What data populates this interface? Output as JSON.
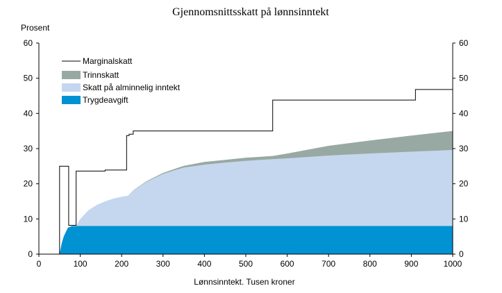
{
  "chart_data": {
    "type": "area",
    "title": "Gjennomsnittsskatt på lønnsinntekt",
    "ylabel": "Prosent",
    "xlabel": "Lønnsinntekt. Tusen kroner",
    "xlim": [
      0,
      1000
    ],
    "ylim": [
      0,
      60
    ],
    "x_ticks": [
      0,
      100,
      200,
      300,
      400,
      500,
      600,
      700,
      800,
      900,
      1000
    ],
    "y_ticks": [
      0,
      10,
      20,
      30,
      40,
      50,
      60
    ],
    "grid": false,
    "legend_position": "top-left",
    "x": [
      50,
      55,
      60,
      70,
      80,
      90,
      100,
      120,
      140,
      160,
      180,
      200,
      215,
      230,
      260,
      300,
      350,
      400,
      450,
      500,
      565,
      600,
      700,
      800,
      900,
      1000
    ],
    "series": [
      {
        "name": "Trygdeavgift",
        "color": "#0092d2",
        "values": [
          0,
          3.0,
          5.0,
          7.5,
          8.0,
          8.0,
          8.0,
          8.0,
          8.0,
          8.0,
          8.0,
          8.0,
          8.0,
          8.0,
          8.0,
          8.0,
          8.0,
          8.0,
          8.0,
          8.0,
          8.0,
          8.0,
          8.0,
          8.0,
          8.0,
          8.0
        ]
      },
      {
        "name": "Skatt på alminnelig inntekt",
        "color": "#c5d7ef",
        "values": [
          0,
          0,
          0,
          0,
          0,
          0,
          2.0,
          4.5,
          6.0,
          7.0,
          7.8,
          8.3,
          8.6,
          10.2,
          12.5,
          14.8,
          16.6,
          17.4,
          18.0,
          18.5,
          19.0,
          19.2,
          20.0,
          20.6,
          21.1,
          21.6
        ]
      },
      {
        "name": "Trinnskatt",
        "color": "#98a9a3",
        "values": [
          0,
          0,
          0,
          0,
          0,
          0,
          0,
          0,
          0,
          0,
          0,
          0,
          0,
          0.1,
          0.2,
          0.3,
          0.5,
          0.8,
          0.8,
          0.9,
          0.9,
          1.4,
          2.8,
          3.7,
          4.6,
          5.4
        ]
      }
    ],
    "marginal": {
      "name": "Marginalskatt",
      "color": "#000000",
      "x": [
        0,
        50,
        50,
        72,
        72,
        90,
        90,
        160,
        160,
        212,
        212,
        218,
        218,
        228,
        228,
        565,
        565,
        910,
        910,
        1000
      ],
      "y": [
        0,
        0,
        25,
        25,
        8.2,
        8.2,
        23.6,
        23.6,
        23.9,
        23.9,
        33.7,
        33.7,
        34.1,
        34.1,
        35.0,
        35.0,
        43.8,
        43.8,
        46.8,
        46.8
      ]
    }
  }
}
